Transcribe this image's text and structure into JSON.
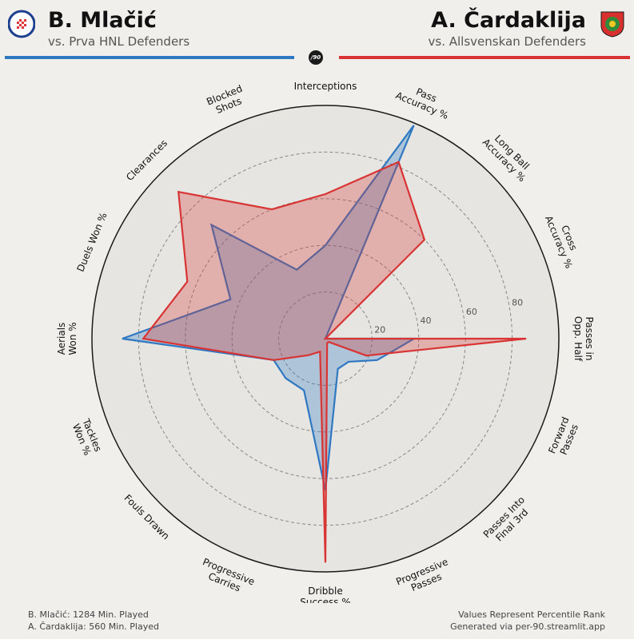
{
  "header": {
    "left": {
      "name": "B. Mlačić",
      "comparison": "vs. Prva HNL Defenders"
    },
    "right": {
      "name": "A. Čardaklija",
      "comparison": "vs. Allsvenskan Defenders"
    },
    "badge": "/90",
    "left_color": "#2f78c2",
    "right_color": "#d83434"
  },
  "crests": {
    "left": "hajduk-split-crest-icon",
    "right": "gif-sundsvall-crest-icon"
  },
  "chart_data": {
    "type": "radar",
    "axes": [
      "Interceptions",
      "Pass Accuracy %",
      "Long Ball Accuracy %",
      "Cross Accuracy %",
      "Passes in Opp. Half",
      "Forward Passes",
      "Passes Into Final 3rd",
      "Progressive Passes",
      "Dribble Success %",
      "Progressive Carries",
      "Fouls Drawn",
      "Tackles Won %",
      "Aerials Won %",
      "Duels Won %",
      "Clearances",
      "Blocked Shots"
    ],
    "range": [
      0,
      100
    ],
    "ring_ticks": [
      20,
      40,
      60,
      80
    ],
    "series": [
      {
        "name": "B. Mlačić",
        "color": "#2f78c2",
        "fill": "rgba(47,120,194,0.30)",
        "values": [
          40,
          99,
          0,
          0,
          38,
          24,
          14,
          14,
          65,
          24,
          24,
          24,
          87,
          44,
          69,
          32
        ]
      },
      {
        "name": "A. Čardaklija",
        "color": "#d83434",
        "fill": "rgba(216,52,52,0.30)",
        "values": [
          62,
          82,
          60,
          0,
          86,
          19,
          2,
          2,
          96,
          6,
          10,
          24,
          78,
          64,
          89,
          60
        ]
      }
    ]
  },
  "footer": {
    "left_lines": [
      "B. Mlačić: 1284 Min. Played",
      "A. Čardaklija: 560 Min. Played"
    ],
    "right_lines": [
      "Values Represent Percentile Rank",
      "Generated via per-90.streamlit.app"
    ]
  }
}
